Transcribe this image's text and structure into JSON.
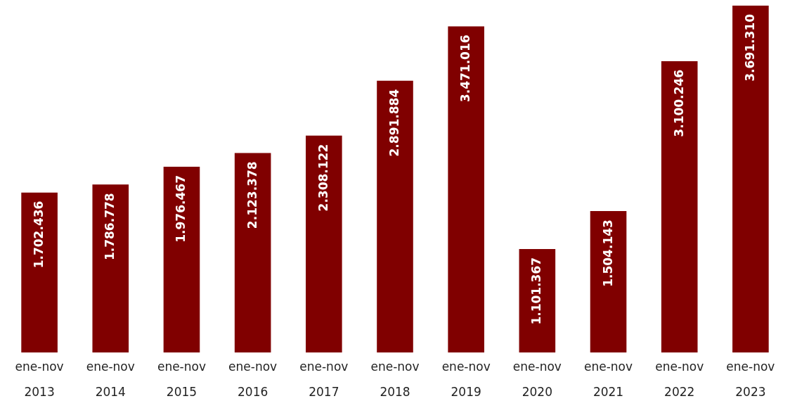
{
  "chart_data": {
    "type": "bar",
    "categories": [
      "ene-nov\n2013",
      "ene-nov\n2014",
      "ene-nov\n2015",
      "ene-nov\n2016",
      "ene-nov\n2017",
      "ene-nov\n2018",
      "ene-nov\n2019",
      "ene-nov\n2020",
      "ene-nov\n2021",
      "ene-nov\n2022",
      "ene-nov\n2023"
    ],
    "values": [
      1702436,
      1786778,
      1976467,
      2123378,
      2308122,
      2891884,
      3471016,
      1101367,
      1504143,
      3100246,
      3691310
    ],
    "value_labels": [
      "1.702.436",
      "1.786.778",
      "1.976.467",
      "2.123.378",
      "2.308.122",
      "2.891.884",
      "3.471.016",
      "1.101.367",
      "1.504.143",
      "3.100.246",
      "3.691.310"
    ],
    "color": "#800000"
  }
}
